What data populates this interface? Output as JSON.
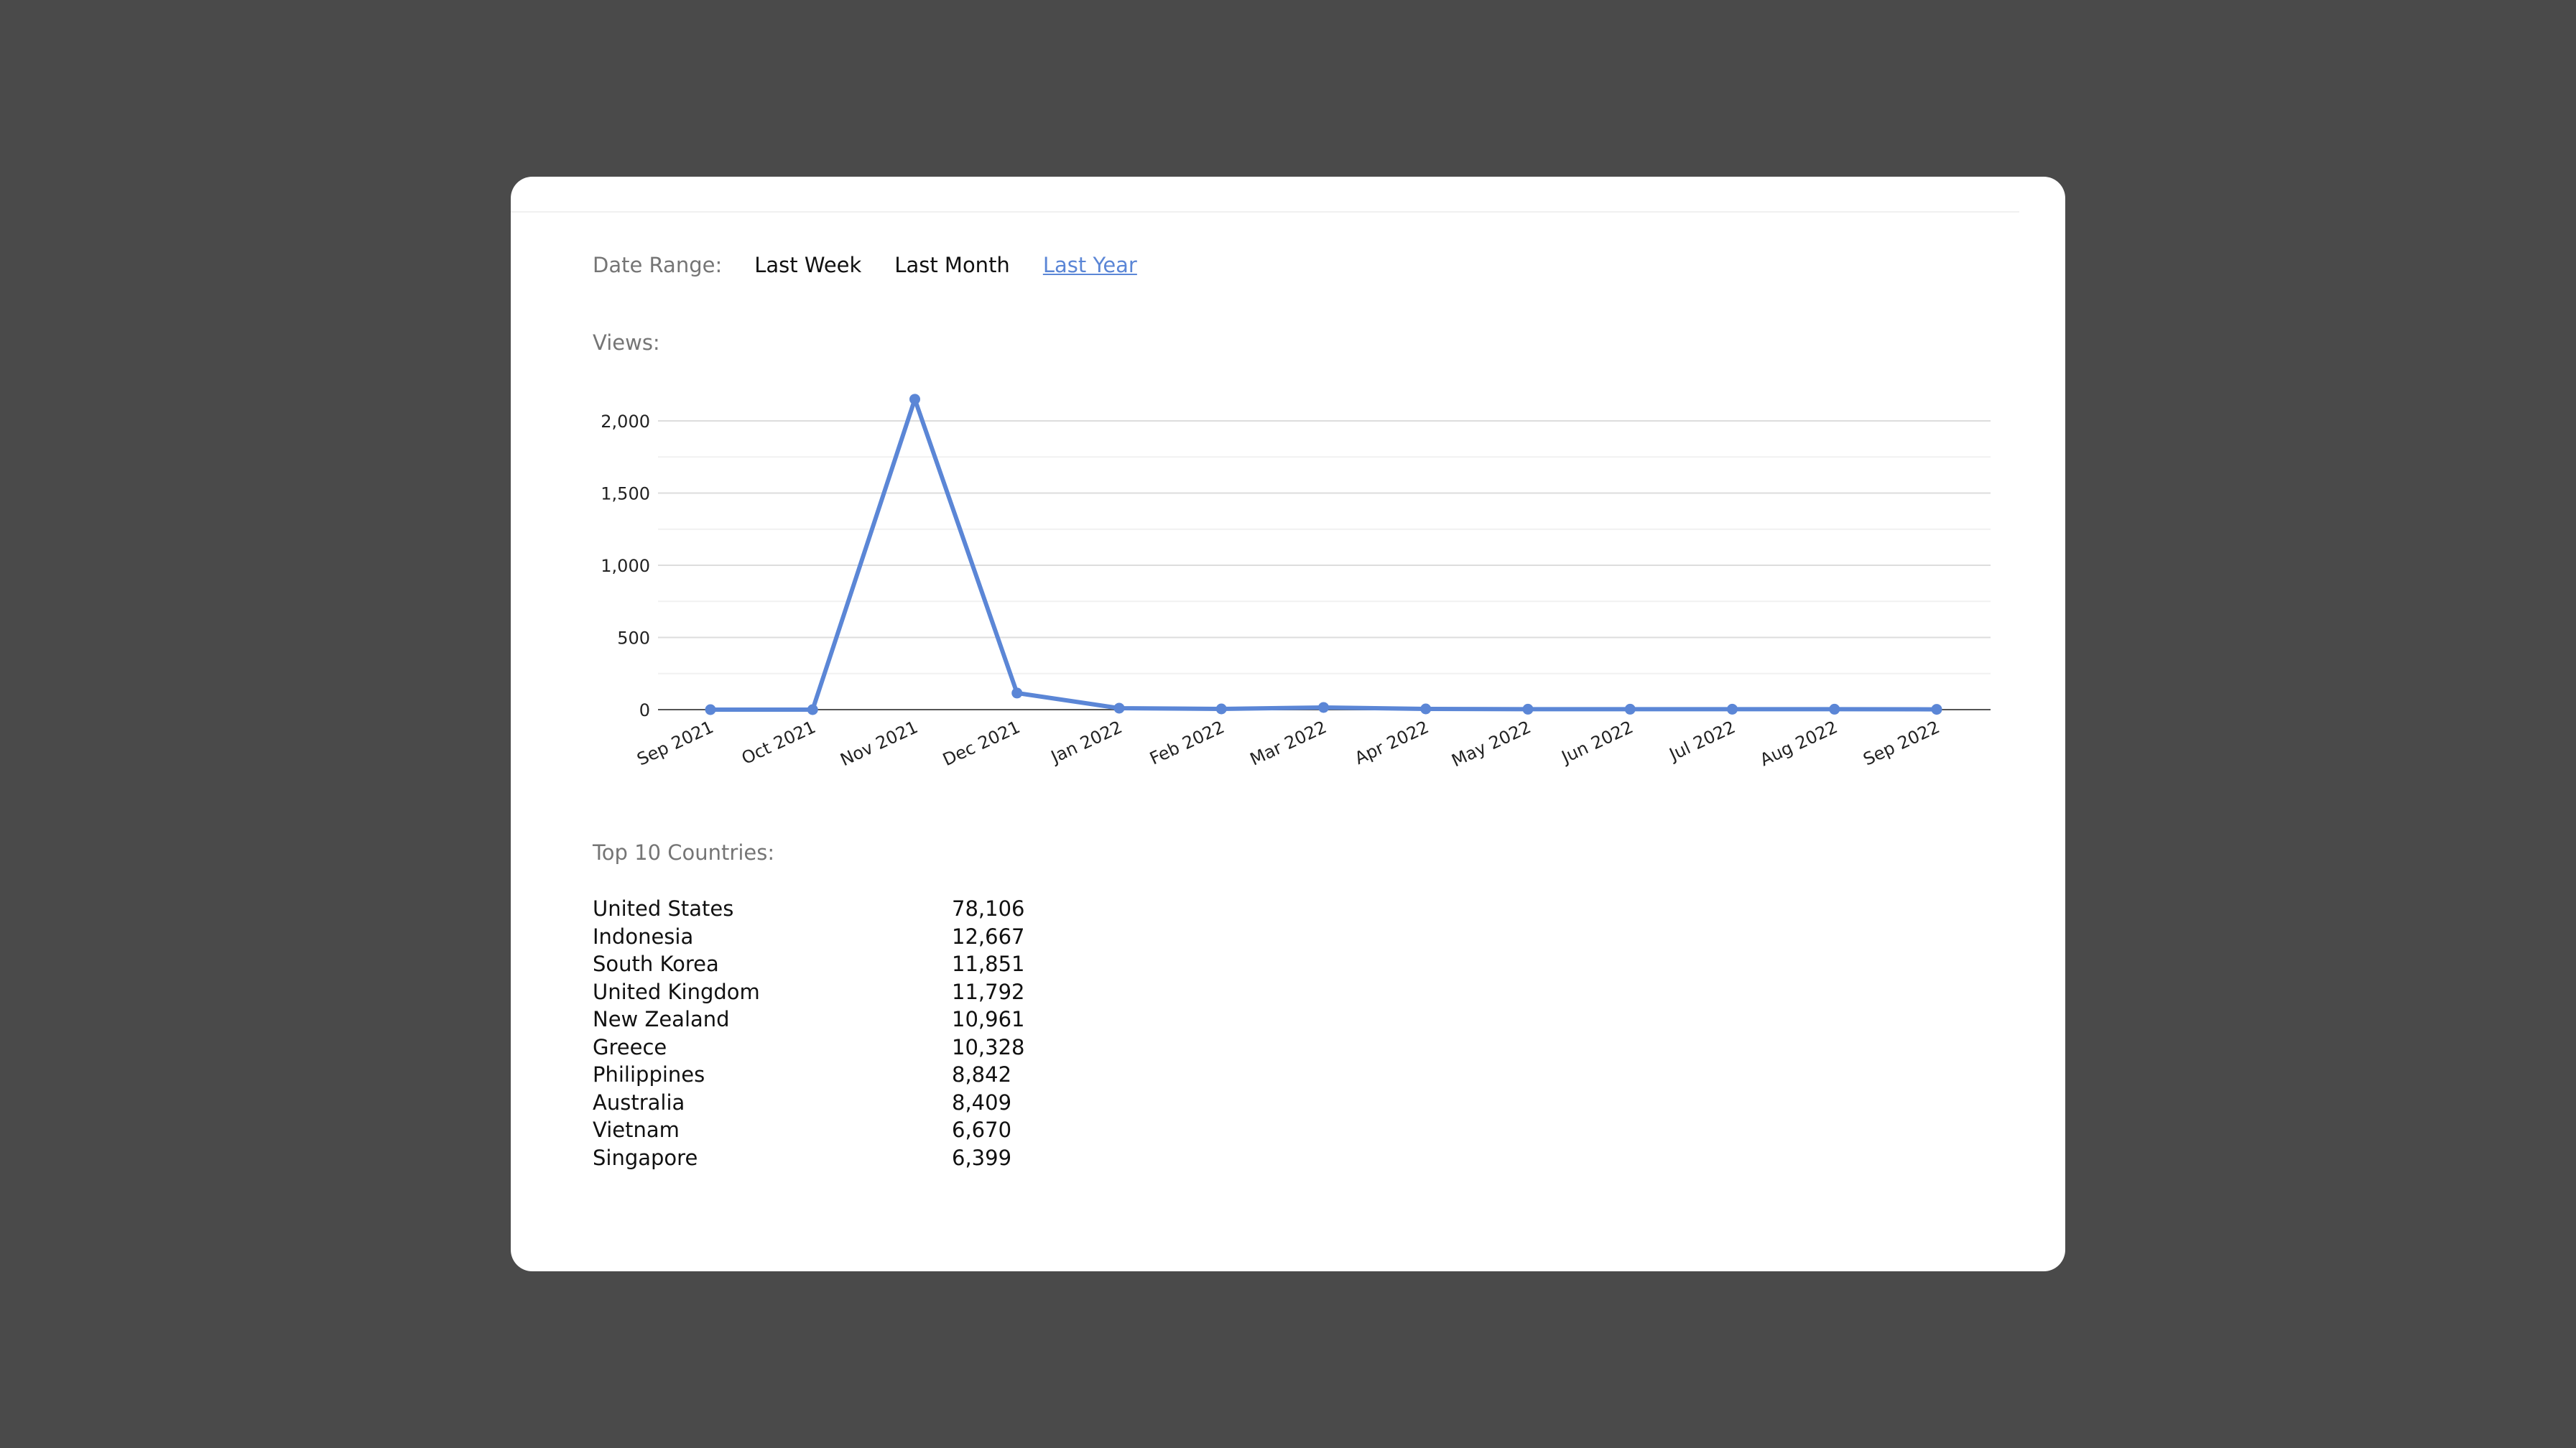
{
  "filters": {
    "label": "Date Range:",
    "options": [
      {
        "label": "Last Week",
        "active": false
      },
      {
        "label": "Last Month",
        "active": false
      },
      {
        "label": "Last Year",
        "active": true
      }
    ]
  },
  "views": {
    "label": "Views:"
  },
  "chart_data": {
    "type": "line",
    "title": "",
    "xlabel": "",
    "ylabel": "",
    "categories": [
      "Sep 2021",
      "Oct 2021",
      "Nov 2021",
      "Dec 2021",
      "Jan 2022",
      "Feb 2022",
      "Mar 2022",
      "Apr 2022",
      "May 2022",
      "Jun 2022",
      "Jul 2022",
      "Aug 2022",
      "Sep 2022"
    ],
    "values": [
      0,
      0,
      2150,
      115,
      10,
      5,
      15,
      5,
      3,
      3,
      3,
      3,
      2
    ],
    "ylim": [
      0,
      2000
    ],
    "yticks": [
      0,
      500,
      1000,
      1500,
      2000
    ],
    "ytick_labels": [
      "0",
      "500",
      "1,000",
      "1,500",
      "2,000"
    ],
    "grid": true,
    "color": "#5b86d6"
  },
  "countries": {
    "label": "Top 10 Countries:",
    "rows": [
      {
        "name": "United States",
        "value": "78,106"
      },
      {
        "name": "Indonesia",
        "value": "12,667"
      },
      {
        "name": "South Korea",
        "value": "11,851"
      },
      {
        "name": "United Kingdom",
        "value": "11,792"
      },
      {
        "name": "New Zealand",
        "value": "10,961"
      },
      {
        "name": "Greece",
        "value": "10,328"
      },
      {
        "name": "Philippines",
        "value": "8,842"
      },
      {
        "name": "Australia",
        "value": "8,409"
      },
      {
        "name": "Vietnam",
        "value": "6,670"
      },
      {
        "name": "Singapore",
        "value": "6,399"
      }
    ]
  },
  "colors": {
    "background": "#4a4a4a",
    "panel": "#ffffff",
    "accent": "#5b86d6",
    "muted_text": "#757575"
  }
}
